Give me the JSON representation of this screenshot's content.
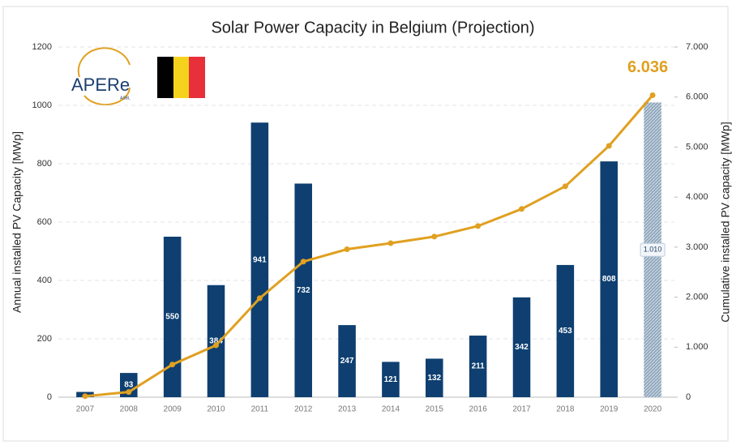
{
  "chart_data": {
    "type": "bar",
    "title": "Solar Power Capacity in Belgium (Projection)",
    "logo": {
      "text": "APERe",
      "sub": "ASBL"
    },
    "ylabel": "Annual installed PV Capacity [MWp]",
    "y2label": "Cumulative installed PV capacity [MWp]",
    "categories": [
      "2007",
      "2008",
      "2009",
      "2010",
      "2011",
      "2012",
      "2013",
      "2014",
      "2015",
      "2016",
      "2017",
      "2018",
      "2019",
      "2020"
    ],
    "series": [
      {
        "type": "bar",
        "color": "#0e3f70",
        "projection_color": "#8fa6bb",
        "values": [
          18,
          83,
          550,
          384,
          941,
          732,
          247,
          121,
          132,
          211,
          342,
          453,
          808,
          1010
        ],
        "value_labels": [
          null,
          "83",
          "550",
          "384",
          "941",
          "732",
          "247",
          "121",
          "132",
          "211",
          "342",
          "453",
          "808",
          "1.010"
        ]
      },
      {
        "type": "line",
        "axis": "y2",
        "color": "#e0a020",
        "values": [
          20,
          103,
          653,
          1037,
          1978,
          2710,
          2957,
          3078,
          3210,
          3421,
          3763,
          4216,
          5024,
          6036
        ],
        "end_label": "6.036"
      }
    ],
    "ylim": [
      0,
      1200
    ],
    "yticks": [
      0,
      200,
      400,
      600,
      800,
      1000,
      1200
    ],
    "y2lim": [
      0,
      7000
    ],
    "y2ticks": [
      {
        "value": 0,
        "label": "0"
      },
      {
        "value": 1000,
        "label": "1.000"
      },
      {
        "value": 2000,
        "label": "2.000"
      },
      {
        "value": 3000,
        "label": "3.000"
      },
      {
        "value": 4000,
        "label": "4.000"
      },
      {
        "value": 5000,
        "label": "5.000"
      },
      {
        "value": 6000,
        "label": "6.000"
      },
      {
        "value": 7000,
        "label": "7.000"
      }
    ],
    "grid": true
  }
}
